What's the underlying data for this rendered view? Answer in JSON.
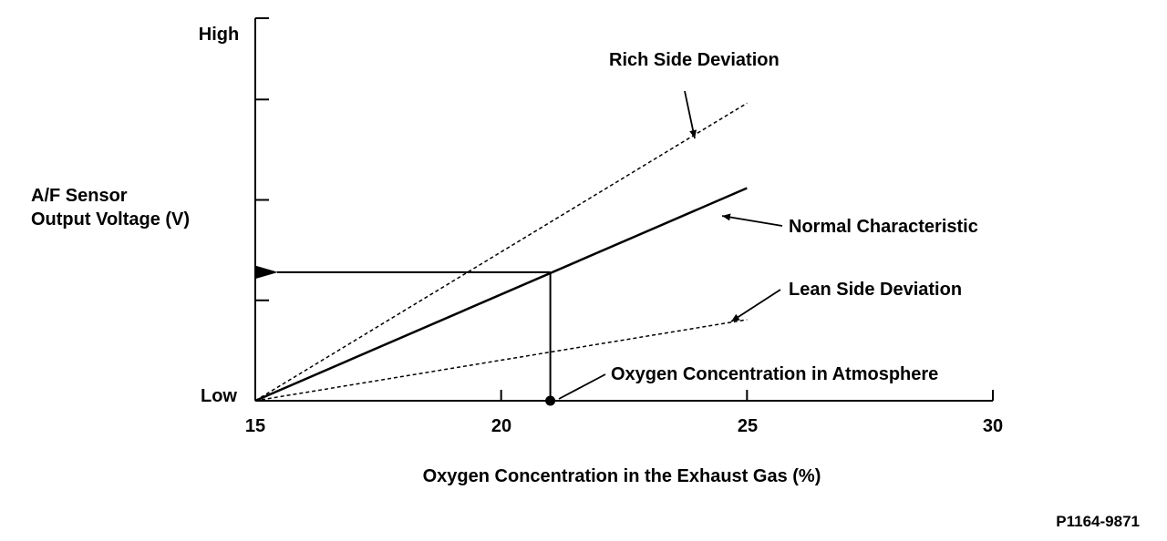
{
  "chart_data": {
    "type": "line",
    "title": "",
    "xlabel": "Oxygen Concentration in the Exhaust Gas (%)",
    "ylabel_lines": [
      "A/F Sensor",
      "Output Voltage (V)"
    ],
    "xlim": [
      15,
      30
    ],
    "ylim": [
      0,
      1
    ],
    "x_ticks": [
      15,
      20,
      25,
      30
    ],
    "y_tick_labels": {
      "top": "High",
      "bottom": "Low"
    },
    "y_ticks": [
      0,
      0.2625,
      0.525,
      0.7875,
      1
    ],
    "grid": false,
    "series": [
      {
        "name": "Rich Side Deviation",
        "style": "dashed",
        "points": [
          [
            15,
            0
          ],
          [
            25,
            0.778
          ]
        ]
      },
      {
        "name": "Normal Characteristic",
        "style": "solid",
        "points": [
          [
            15,
            0
          ],
          [
            25,
            0.556
          ]
        ]
      },
      {
        "name": "Lean Side Deviation",
        "style": "dashed",
        "points": [
          [
            15,
            0
          ],
          [
            25,
            0.212
          ]
        ]
      }
    ],
    "marker": {
      "name": "Oxygen Concentration in Atmosphere",
      "x": 21,
      "y": 0
    },
    "reference_value": {
      "x": 21,
      "y": 0.336
    },
    "figure_id": "P1164-9871"
  }
}
